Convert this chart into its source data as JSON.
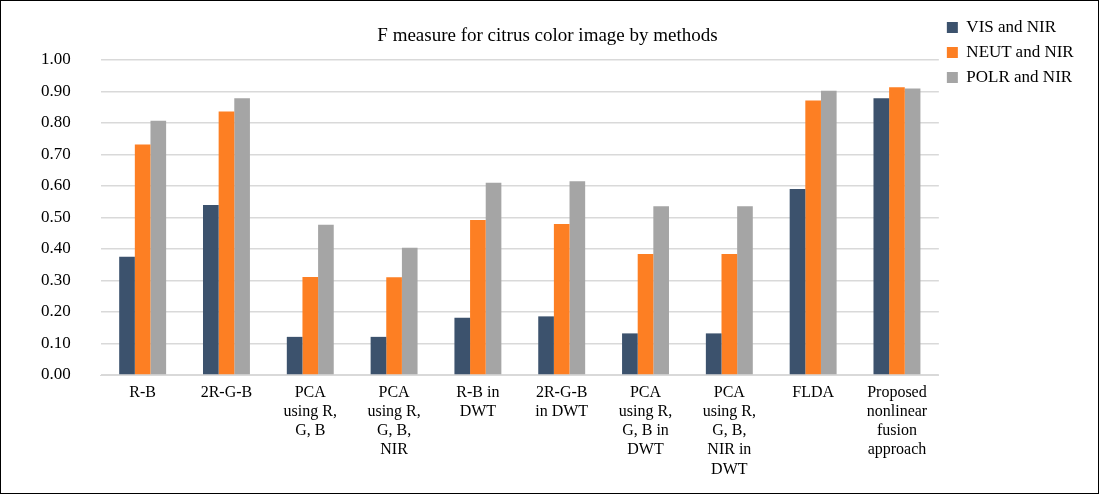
{
  "chart_data": {
    "type": "bar",
    "title": "F measure for citrus color image by methods",
    "categories": [
      "R-B",
      "2R-G-B",
      "PCA using R, G, B",
      "PCA using R, G, B, NIR",
      "R-B in DWT",
      "2R-G-B in DWT",
      "PCA using R, G, B in DWT",
      "PCA using R, G, B, NIR in DWT",
      "FLDA",
      "Proposed nonlinear fusion approach"
    ],
    "series": [
      {
        "name": "VIS and NIR",
        "color": "#3c526d",
        "values": [
          0.375,
          0.539,
          0.121,
          0.121,
          0.182,
          0.186,
          0.132,
          0.132,
          0.59,
          0.878
        ]
      },
      {
        "name": "NEUT and NIR",
        "color": "#fd7f23",
        "values": [
          0.731,
          0.836,
          0.311,
          0.31,
          0.492,
          0.479,
          0.384,
          0.384,
          0.871,
          0.913
        ]
      },
      {
        "name": "POLR and NIR",
        "color": "#a5a5a5",
        "values": [
          0.807,
          0.878,
          0.477,
          0.404,
          0.61,
          0.615,
          0.535,
          0.535,
          0.902,
          0.909
        ]
      }
    ],
    "ylim": [
      0,
      1
    ],
    "yticks": [
      {
        "value": 0,
        "label": "0.00"
      },
      {
        "value": 0.1,
        "label": "0.10"
      },
      {
        "value": 0.2,
        "label": "0.20"
      },
      {
        "value": 0.3,
        "label": "0.30"
      },
      {
        "value": 0.4,
        "label": "0.40"
      },
      {
        "value": 0.5,
        "label": "0.50"
      },
      {
        "value": 0.6,
        "label": "0.60"
      },
      {
        "value": 0.7,
        "label": "0.70"
      },
      {
        "value": 0.8,
        "label": "0.80"
      },
      {
        "value": 0.9,
        "label": "0.90"
      },
      {
        "value": 1,
        "label": "1.00"
      }
    ],
    "grid": "y",
    "legend": "top right"
  }
}
